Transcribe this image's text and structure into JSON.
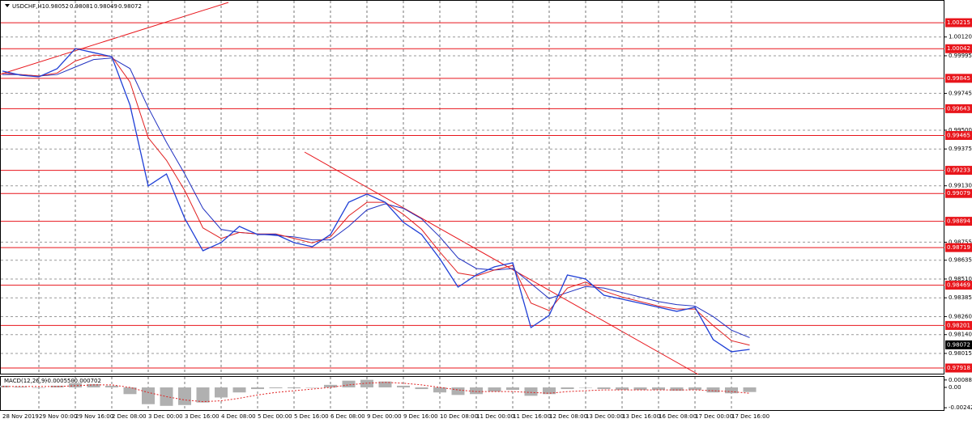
{
  "chart_data": [
    {
      "type": "line",
      "title": "USDCHF,H1",
      "open": 0.98052,
      "high": 0.98081,
      "low": 0.98049,
      "close": 0.98072,
      "categories": [
        "28 Nov 2019",
        null,
        "29 Nov 00:00",
        null,
        "29 Nov 16:00",
        null,
        "2 Dec 08:00",
        null,
        "3 Dec 00:00",
        null,
        "3 Dec 16:00",
        null,
        "4 Dec 08:00",
        null,
        "5 Dec 00:00",
        null,
        "5 Dec 16:00",
        null,
        "6 Dec 08:00",
        null,
        "9 Dec 00:00",
        null,
        "9 Dec 16:00",
        null,
        "10 Dec 08:00",
        null,
        "11 Dec 00:00",
        null,
        "11 Dec 16:00",
        null,
        "12 Dec 08:00",
        null,
        "13 Dec 00:00",
        null,
        "13 Dec 16:00",
        null,
        "16 Dec 08:00",
        null,
        "17 Dec 00:00",
        null,
        "17 Dec 16:00",
        null
      ],
      "series": [
        {
          "color": "#1f3fd6",
          "values": [
            0.99893,
            0.99866,
            0.99855,
            0.99909,
            1.00043,
            1.00016,
            0.99989,
            0.99667,
            0.99129,
            0.99209,
            0.98914,
            0.98698,
            0.98752,
            0.9886,
            0.98806,
            0.98806,
            0.98752,
            0.98725,
            0.98806,
            0.99021,
            0.99075,
            0.99021,
            0.98887,
            0.98806,
            0.98645,
            0.98456,
            0.98537,
            0.98591,
            0.98618,
            0.98187,
            0.98268,
            0.98537,
            0.9851,
            0.98402,
            0.98376,
            0.98349,
            0.98322,
            0.98295,
            0.98322,
            0.98107,
            0.98026,
            0.98042
          ]
        },
        {
          "color": "#e02020",
          "values": [
            0.9988,
            0.9987,
            0.9986,
            0.9988,
            0.9996,
            1.0,
            0.9999,
            0.9982,
            0.9945,
            0.993,
            0.991,
            0.9885,
            0.9878,
            0.9882,
            0.9881,
            0.9881,
            0.9878,
            0.9875,
            0.9879,
            0.9893,
            0.9902,
            0.9902,
            0.9894,
            0.9884,
            0.9869,
            0.9855,
            0.9853,
            0.9857,
            0.986,
            0.9835,
            0.983,
            0.9845,
            0.9849,
            0.9843,
            0.9839,
            0.9836,
            0.9833,
            0.9831,
            0.9831,
            0.982,
            0.981,
            0.9807
          ]
        },
        {
          "color": "#2030c0",
          "values": [
            0.9987,
            0.9987,
            0.9986,
            0.9987,
            0.9992,
            0.9997,
            0.9998,
            0.9991,
            0.9965,
            0.9942,
            0.9921,
            0.9898,
            0.9884,
            0.9882,
            0.9881,
            0.988,
            0.9879,
            0.9877,
            0.9877,
            0.9886,
            0.9897,
            0.9901,
            0.9898,
            0.9891,
            0.9879,
            0.9865,
            0.9858,
            0.9857,
            0.9858,
            0.9848,
            0.9838,
            0.9842,
            0.9846,
            0.9845,
            0.9842,
            0.9839,
            0.9836,
            0.9834,
            0.9833,
            0.9826,
            0.9817,
            0.9812
          ]
        }
      ],
      "levels": [
        1.00215,
        1.00042,
        0.99845,
        0.99643,
        0.99465,
        0.99233,
        0.99079,
        0.98894,
        0.98719,
        0.98469,
        0.98201,
        0.97918
      ],
      "level_color": "#e8151b",
      "ylim": [
        0.97875,
        1.00366
      ],
      "yticks": [
        {
          "value": 1.0012,
          "label": "1.00120"
        },
        0.99995,
        0.99745,
        {
          "value": 0.995,
          "label": "0.99500"
        },
        0.99375,
        {
          "value": 0.9913,
          "label": "0.99130"
        },
        0.98755,
        0.98635,
        {
          "value": 0.9851,
          "label": "0.98510"
        },
        0.98385,
        {
          "value": 0.9826,
          "label": "0.98260"
        },
        {
          "value": 0.9814,
          "label": "0.98140"
        },
        0.98015
      ],
      "grid": true
    },
    {
      "type": "macd",
      "title": "MACD(12,26,9)",
      "header_values": [
        {
          "value": -0.00055,
          "label": "-0.000550"
        },
        -0.000702
      ],
      "series": [
        {
          "color": "#b0b0b0",
          "values": [
            0.0002,
            0.0001,
            0.0,
            0.0002,
            0.0005,
            0.0004,
            0.0002,
            -0.0008,
            -0.002,
            -0.0022,
            -0.0021,
            -0.0018,
            -0.0012,
            -0.0006,
            -0.0002,
            -0.0001,
            -0.0001,
            0.0,
            0.0003,
            0.0008,
            0.0009,
            0.0007,
            0.0002,
            -0.0002,
            -0.0006,
            -0.0009,
            -0.0008,
            -0.0005,
            -0.0003,
            -0.001,
            -0.0008,
            -0.0002,
            0.0,
            -0.0002,
            -0.0003,
            -0.0003,
            -0.0003,
            -0.0004,
            -0.0003,
            -0.0006,
            -0.0007,
            -0.00055
          ]
        },
        {
          "color": "#e02020",
          "values": [
            0.0001,
            0.0001,
            0.0001,
            0.0001,
            0.0002,
            0.0003,
            0.0003,
            0.0,
            -0.0006,
            -0.0011,
            -0.0015,
            -0.0017,
            -0.0016,
            -0.0013,
            -0.0009,
            -0.0006,
            -0.0004,
            -0.0002,
            0.0,
            0.0003,
            0.0005,
            0.0006,
            0.0005,
            0.0003,
            0.0,
            -0.0003,
            -0.0005,
            -0.0005,
            -0.0005,
            -0.0006,
            -0.0007,
            -0.0005,
            -0.0004,
            -0.0003,
            -0.0003,
            -0.0003,
            -0.0003,
            -0.0003,
            -0.0003,
            -0.0004,
            -0.0005,
            -0.000702
          ]
        }
      ],
      "ylim": [
        -0.0027,
        0.00125
      ],
      "yticks": [
        0.000882,
        {
          "value": 0,
          "label": "0.00"
        },
        -0.002422
      ]
    }
  ]
}
